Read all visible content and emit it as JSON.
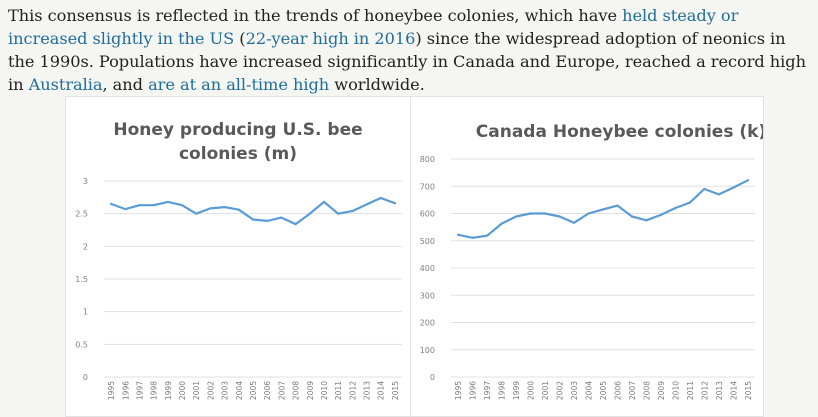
{
  "article": {
    "t1": "This consensus is reflected in the trends of honeybee colonies, which have ",
    "link1": "held steady or increased slightly in the US",
    "t2": " (",
    "link2": "22-year high in 2016",
    "t3": ") since the widespread adoption of neonics in the 1990s. Populations have increased significantly in Canada and Europe, reached a record high in ",
    "link3": "Australia",
    "t4": ", and ",
    "link4": "are at an all-time high",
    "t5": " worldwide."
  },
  "colors": {
    "line": "#5b9bd5",
    "link": "#1f6e99",
    "grid": "#e0e0e0"
  },
  "chart_data": [
    {
      "type": "line",
      "title": [
        "Honey producing U.S. bee",
        "colonies (m)"
      ],
      "categories": [
        "1995",
        "1996",
        "1997",
        "1998",
        "1999",
        "2000",
        "2001",
        "2002",
        "2003",
        "2004",
        "2005",
        "2006",
        "2007",
        "2008",
        "2009",
        "2010",
        "2011",
        "2012",
        "2013",
        "2014",
        "2015"
      ],
      "values": [
        2.65,
        2.57,
        2.63,
        2.63,
        2.68,
        2.63,
        2.5,
        2.58,
        2.6,
        2.56,
        2.41,
        2.39,
        2.44,
        2.34,
        2.5,
        2.68,
        2.5,
        2.54,
        2.64,
        2.74,
        2.66
      ],
      "ylim": [
        0,
        3
      ],
      "yticks": [
        "0",
        "0.5",
        "1",
        "1.5",
        "2",
        "2.5",
        "3"
      ],
      "ytick_values": [
        0,
        0.5,
        1,
        1.5,
        2,
        2.5,
        3
      ],
      "grid": true
    },
    {
      "type": "line",
      "title": [
        "Canada Honeybee colonies (k)"
      ],
      "categories": [
        "1995",
        "1996",
        "1997",
        "1998",
        "1999",
        "2000",
        "2001",
        "2002",
        "2003",
        "2004",
        "2005",
        "2006",
        "2007",
        "2008",
        "2009",
        "2010",
        "2011",
        "2012",
        "2013",
        "2014",
        "2015"
      ],
      "values": [
        522,
        511,
        519,
        563,
        589,
        600,
        600,
        589,
        566,
        600,
        615,
        629,
        589,
        575,
        595,
        620,
        640,
        690,
        670,
        695,
        722
      ],
      "ylim": [
        0,
        800
      ],
      "yticks": [
        "0",
        "100",
        "200",
        "300",
        "400",
        "500",
        "600",
        "700",
        "800"
      ],
      "ytick_values": [
        0,
        100,
        200,
        300,
        400,
        500,
        600,
        700,
        800
      ],
      "grid": true
    }
  ]
}
